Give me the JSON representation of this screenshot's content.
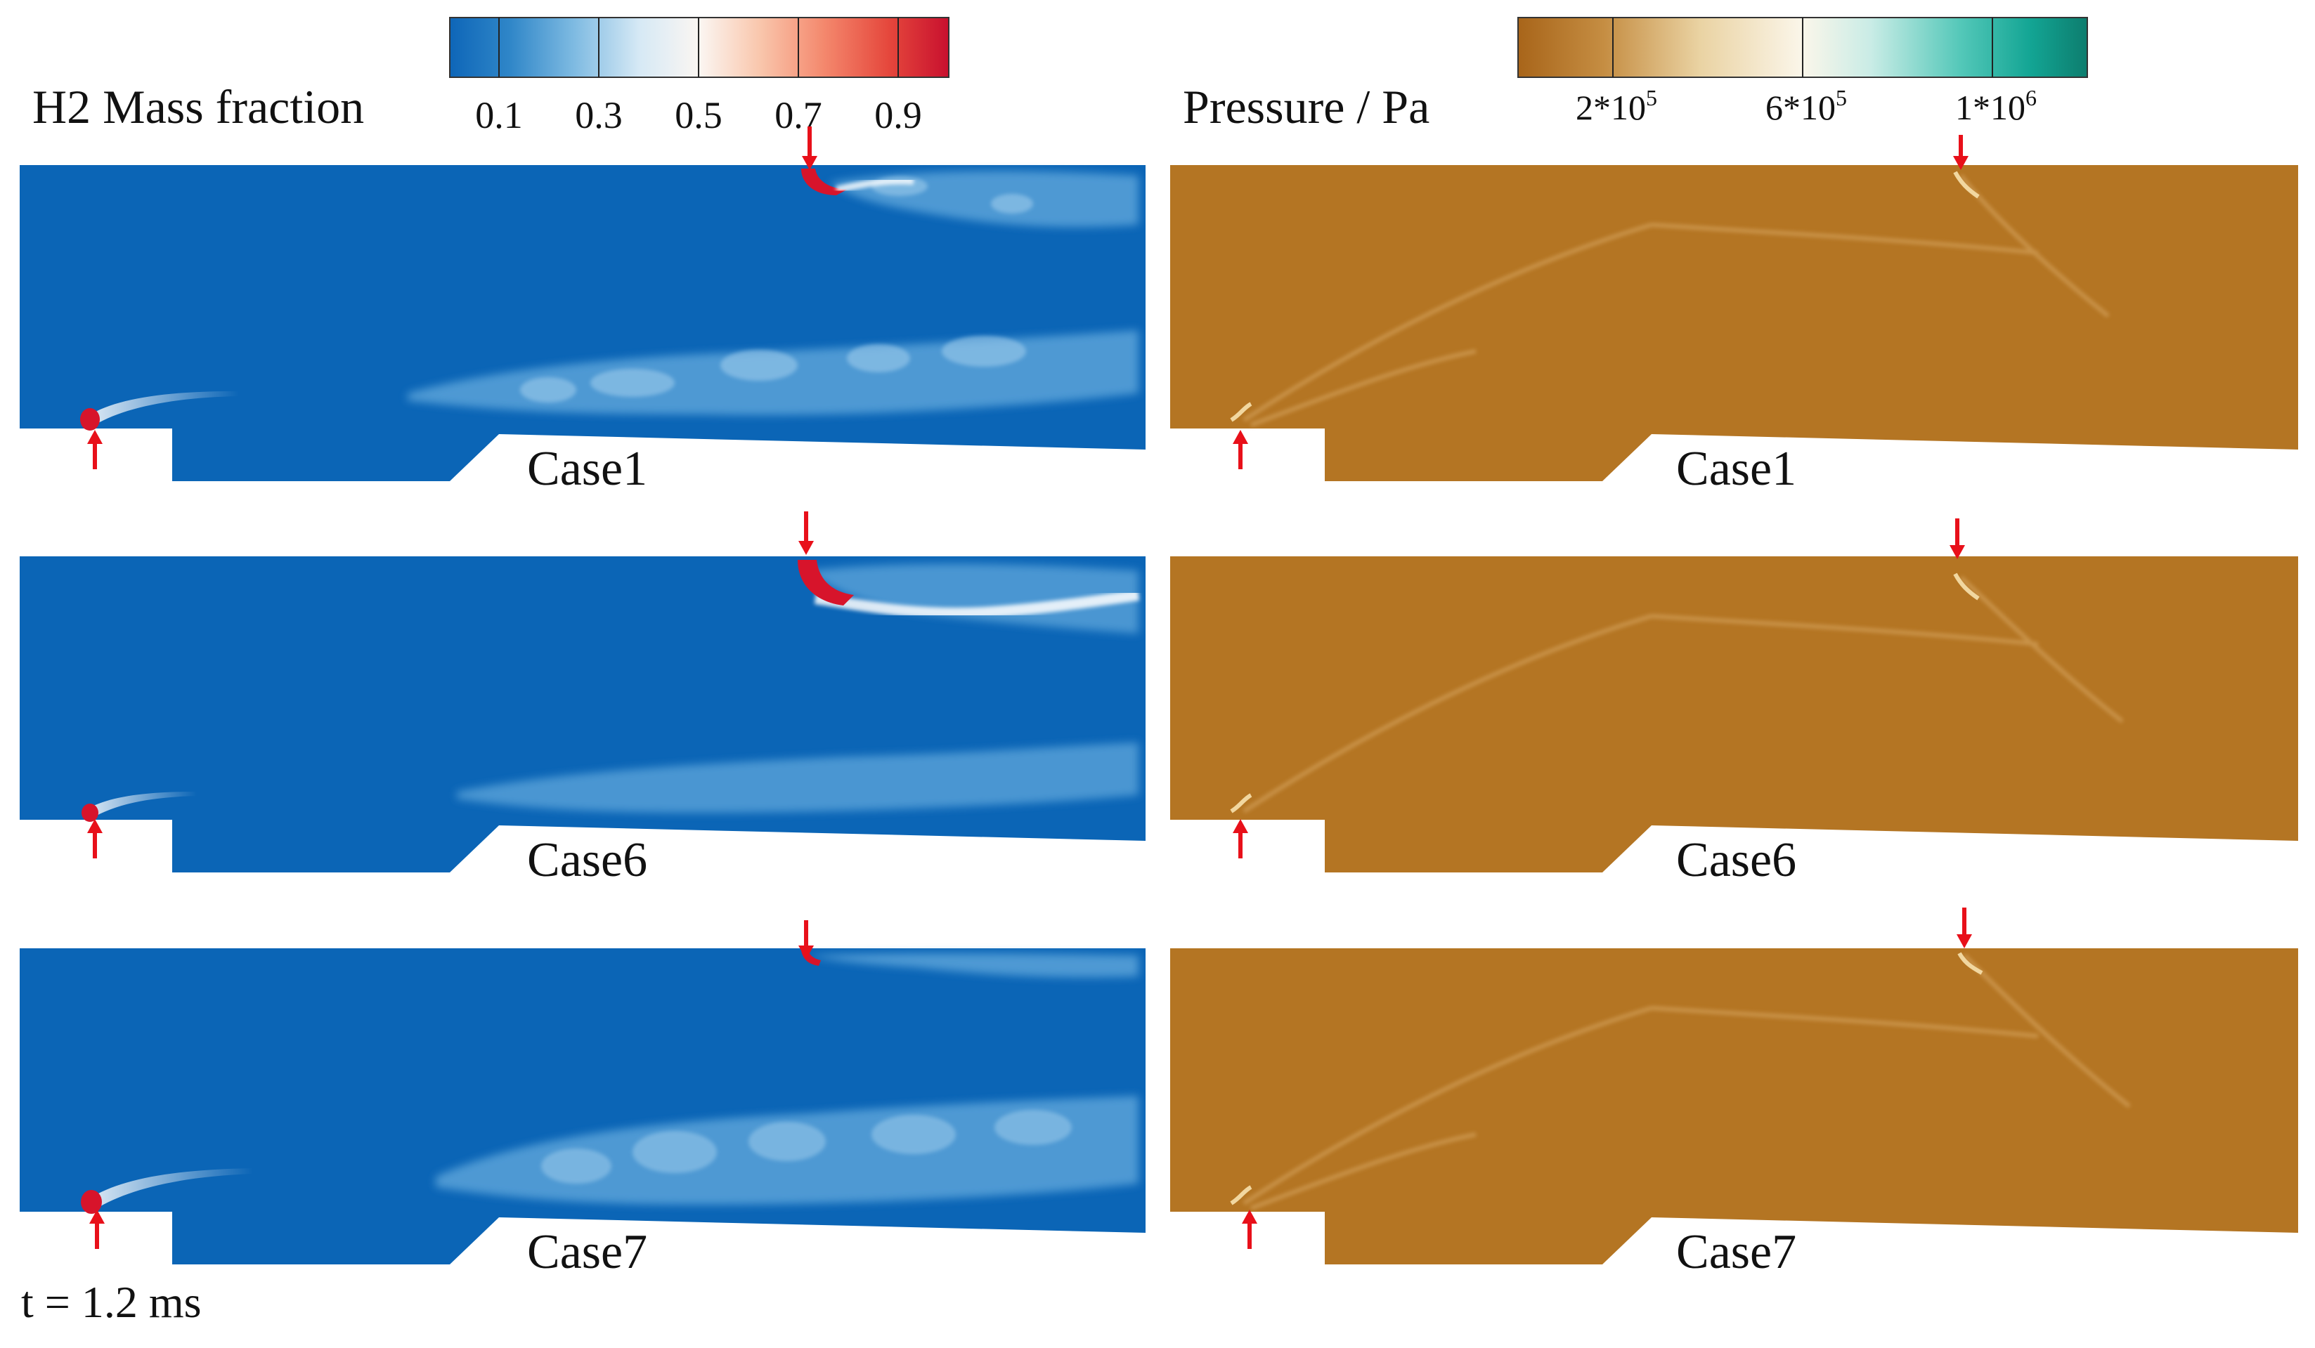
{
  "left_panel": {
    "legend_title": "H2 Mass fraction",
    "ticks": [
      "0.1",
      "0.3",
      "0.5",
      "0.7",
      "0.9"
    ],
    "colormap": [
      "#0e66b8",
      "#2f86c8",
      "#7fbbe2",
      "#d6e9f5",
      "#fbf6f2",
      "#f9c7ad",
      "#f4886d",
      "#e5473c",
      "#c8102e"
    ]
  },
  "right_panel": {
    "legend_title": "Pressure / Pa",
    "ticks": [
      {
        "base": "2*10",
        "exp": "5"
      },
      {
        "base": "6*10",
        "exp": "5"
      },
      {
        "base": "1*10",
        "exp": "6"
      }
    ],
    "colormap": [
      "#a8651a",
      "#c58d42",
      "#ead3a3",
      "#fbf6ea",
      "#c9ece6",
      "#52c7b8",
      "#13a594",
      "#0d7d6e"
    ]
  },
  "cases": [
    {
      "label": "Case1"
    },
    {
      "label": "Case6"
    },
    {
      "label": "Case7"
    }
  ],
  "time_label": "t = 1.2 ms",
  "colors": {
    "field_blue": "#0b65b6",
    "plume_light": "#5aa3d9",
    "hydrogen_red": "#d7142b",
    "field_brown": "#b47523",
    "arrow_red": "#e8101a"
  }
}
